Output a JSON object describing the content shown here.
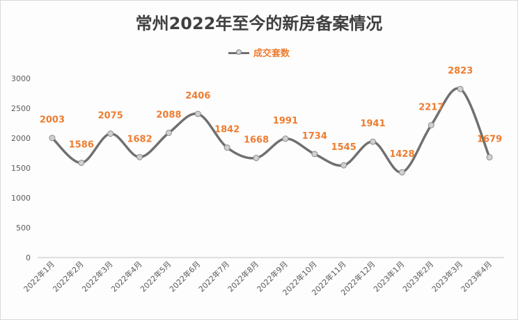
{
  "chart_data": {
    "type": "line",
    "title": "常州2022年至今的新房备案情况",
    "categories": [
      "2022年1月",
      "2022年2月",
      "2022年3月",
      "2022年4月",
      "2022年5月",
      "2022年6月",
      "2022年7月",
      "2022年8月",
      "2022年9月",
      "2022年10月",
      "2022年11月",
      "2022年12月",
      "2023年1月",
      "2023年2月",
      "2023年3月",
      "2023年4月"
    ],
    "series": [
      {
        "name": "成交套数",
        "values": [
          2003,
          1586,
          2075,
          1682,
          2088,
          2406,
          1842,
          1668,
          1991,
          1734,
          1545,
          1941,
          1428,
          2217,
          2823,
          1679
        ]
      }
    ],
    "ylim": [
      0,
      3000
    ],
    "yticks": [
      0,
      500,
      1000,
      1500,
      2000,
      2500,
      3000
    ],
    "xlabel": "",
    "ylabel": "",
    "grid": false,
    "legend_position": "top-center",
    "smooth": true,
    "colors": {
      "line": "#707070",
      "marker_fill": "#d0d0d0",
      "label": "#ED7D31"
    }
  }
}
